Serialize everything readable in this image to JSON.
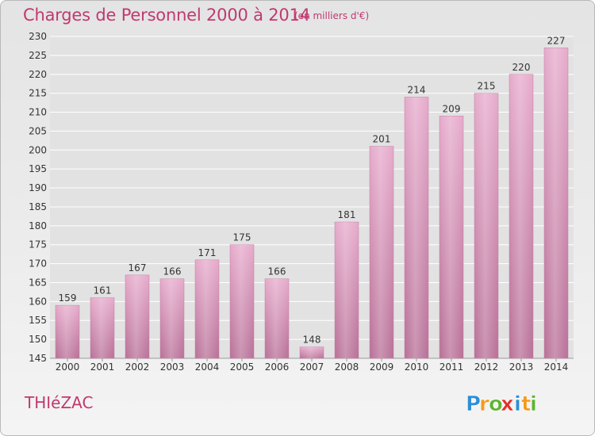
{
  "title": "Charges de Personnel 2000 à 2014",
  "unit": "(en milliers d'€)",
  "town": "THIéZAC",
  "logo": {
    "text": "Proxiti",
    "letters": [
      "P",
      "r",
      "o",
      "x",
      "i",
      "t",
      "i"
    ],
    "colors": [
      "#2c8fd6",
      "#f39a1d",
      "#5cb531",
      "#e2322b",
      "#2c8fd6",
      "#f39a1d",
      "#5cb531"
    ]
  },
  "chart_data": {
    "type": "bar",
    "categories": [
      "2000",
      "2001",
      "2002",
      "2003",
      "2004",
      "2005",
      "2006",
      "2007",
      "2008",
      "2009",
      "2010",
      "2011",
      "2012",
      "2013",
      "2014"
    ],
    "values": [
      159,
      161,
      167,
      166,
      171,
      175,
      166,
      148,
      181,
      201,
      214,
      209,
      215,
      220,
      227
    ],
    "ylim": [
      145,
      230
    ],
    "yticks": [
      145,
      150,
      155,
      160,
      165,
      170,
      175,
      180,
      185,
      190,
      195,
      200,
      205,
      210,
      215,
      220,
      225,
      230
    ],
    "bar_color": "#d682ad",
    "grid": true
  }
}
